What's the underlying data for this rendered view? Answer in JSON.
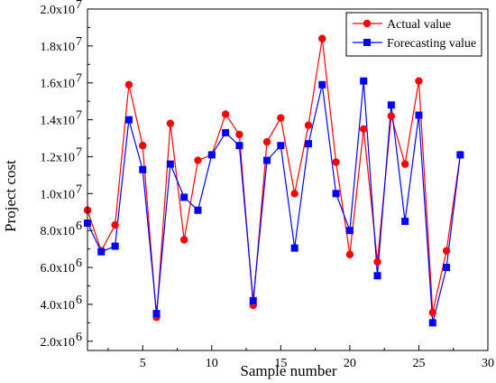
{
  "chart_data": {
    "type": "line",
    "xlabel": "Sample number",
    "ylabel": "Project cost",
    "xlim": [
      1,
      30
    ],
    "ylim": [
      1500000,
      20000000
    ],
    "x_ticks": [
      5,
      10,
      15,
      20,
      25,
      30
    ],
    "y_ticks": [
      {
        "value": 2000000,
        "mant": "2.0x10",
        "exp": "6"
      },
      {
        "value": 4000000,
        "mant": "4.0x10",
        "exp": "6"
      },
      {
        "value": 6000000,
        "mant": "6.0x10",
        "exp": "6"
      },
      {
        "value": 8000000,
        "mant": "8.0x10",
        "exp": "6"
      },
      {
        "value": 10000000,
        "mant": "1.0x10",
        "exp": "7"
      },
      {
        "value": 12000000,
        "mant": "1.2x10",
        "exp": "7"
      },
      {
        "value": 14000000,
        "mant": "1.4x10",
        "exp": "7"
      },
      {
        "value": 16000000,
        "mant": "1.6x10",
        "exp": "7"
      },
      {
        "value": 18000000,
        "mant": "1.8x10",
        "exp": "7"
      },
      {
        "value": 20000000,
        "mant": "2.0x10",
        "exp": "7"
      }
    ],
    "legend_position": "top-right",
    "x": [
      1,
      2,
      3,
      4,
      5,
      6,
      7,
      8,
      9,
      10,
      11,
      12,
      13,
      14,
      15,
      16,
      17,
      18,
      19,
      20,
      21,
      22,
      23,
      24,
      25,
      26,
      27,
      28
    ],
    "series": [
      {
        "name": "Actual value",
        "color": "#ff0000",
        "marker": "circle",
        "values": [
          9100000,
          6900000,
          8300000,
          15900000,
          12600000,
          3300000,
          13800000,
          7500000,
          11800000,
          12100000,
          14300000,
          13200000,
          3950000,
          12800000,
          14100000,
          10000000,
          13700000,
          18400000,
          11700000,
          6700000,
          13500000,
          6300000,
          14200000,
          11600000,
          16100000,
          3550000,
          6900000,
          12100000
        ]
      },
      {
        "name": "Forecasting value",
        "color": "#0000ff",
        "marker": "square",
        "values": [
          8400000,
          6850000,
          7150000,
          14000000,
          11300000,
          3500000,
          11600000,
          9800000,
          9100000,
          12100000,
          13300000,
          12600000,
          4200000,
          11800000,
          12600000,
          7050000,
          12700000,
          15900000,
          10000000,
          8000000,
          16100000,
          5550000,
          14800000,
          8500000,
          14250000,
          3000000,
          6000000,
          12100000
        ]
      }
    ]
  }
}
